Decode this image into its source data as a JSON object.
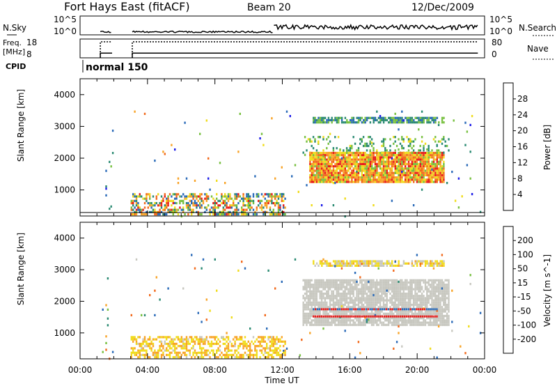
{
  "header": {
    "station": "Fort Hays East (fitACF)",
    "beam": "Beam 20",
    "date": "12/Dec/2009"
  },
  "summary": {
    "nsky_label": "N.Sky",
    "nsky_ticks": [
      "10^5",
      "10^0"
    ],
    "nsearch_label": "N.Search",
    "freq_label": "Freq.",
    "freq_unit": "[MHz]",
    "freq_ticks": [
      "18",
      "8"
    ],
    "nave_ticks": [
      "80",
      "0"
    ],
    "nave_label": "Nave",
    "cpid_label": "CPID",
    "cpid_value": "normal 150"
  },
  "axes": {
    "xlabel": "Time UT",
    "ylabel": "Slant Range [km]",
    "x_ticks": [
      "00:00",
      "04:00",
      "08:00",
      "12:00",
      "16:00",
      "20:00",
      "00:00"
    ],
    "y_ticks": [
      "1000",
      "2000",
      "3000",
      "4000"
    ]
  },
  "colors": {
    "frame": "#000000",
    "background": "#ffffff",
    "ground_scatter": "#c8c8c0"
  },
  "chart_data": [
    {
      "type": "line",
      "title": "N.Sky / N.Search",
      "x_range_hours": [
        0,
        24
      ],
      "ylim": [
        "10^0",
        "10^5"
      ],
      "log_scale": true,
      "gaps_hours": [
        [
          0,
          1.2
        ],
        [
          1.9,
          3.1
        ]
      ],
      "segments": [
        {
          "from": 1.2,
          "to": 1.9,
          "level": "low"
        },
        {
          "from": 3.1,
          "to": 11.5,
          "level": "low"
        },
        {
          "from": 11.5,
          "to": 23.6,
          "level": "elevated"
        }
      ]
    },
    {
      "type": "line",
      "title": "Freq. [MHz] / Nave",
      "x_range_hours": [
        0,
        24
      ],
      "freq_ylim": [
        8,
        18
      ],
      "nave_ylim": [
        0,
        80
      ],
      "segments": [
        {
          "from": 1.2,
          "to": 1.9,
          "freq_mhz": 10.5,
          "nave": 68
        },
        {
          "from": 3.1,
          "to": 23.6,
          "freq_mhz": 10.5,
          "nave": 68
        }
      ],
      "cpid": [
        {
          "from": 1.2,
          "label": "normal 150"
        }
      ]
    },
    {
      "type": "heatmap",
      "title": "Power",
      "colorbar_label": "Power [dB]",
      "colorbar_ticks": [
        4,
        8,
        12,
        16,
        20,
        24,
        28
      ],
      "colorbar_colors": [
        "#1c1ce8",
        "#2a6ab8",
        "#2a8a72",
        "#78c040",
        "#f0dc1c",
        "#f8a428",
        "#f26a1c",
        "#e81c1c"
      ],
      "x_range_hours": [
        0,
        24
      ],
      "ylim_km": [
        180,
        4500
      ],
      "regions": [
        {
          "t0": 1.3,
          "t1": 1.9,
          "r0": 200,
          "r1": 2900,
          "density": 0.05,
          "v": [
            2,
            14
          ]
        },
        {
          "t0": 3.0,
          "t1": 13.0,
          "r0": 200,
          "r1": 3500,
          "density": 0.008,
          "v": [
            2,
            26
          ]
        },
        {
          "t0": 3.0,
          "t1": 12.2,
          "r0": 200,
          "r1": 900,
          "density": 0.55,
          "v": [
            4,
            30
          ]
        },
        {
          "t0": 13.8,
          "t1": 21.6,
          "r0": 3150,
          "r1": 3300,
          "density": 0.75,
          "v": [
            6,
            16
          ]
        },
        {
          "t0": 13.2,
          "t1": 21.9,
          "r0": 2100,
          "r1": 2700,
          "density": 0.2,
          "v": [
            8,
            18
          ]
        },
        {
          "t0": 13.6,
          "t1": 21.6,
          "r0": 1250,
          "r1": 2200,
          "density": 0.92,
          "v": [
            14,
            30
          ]
        },
        {
          "t0": 13.0,
          "t1": 23.8,
          "r0": 200,
          "r1": 3500,
          "density": 0.01,
          "v": [
            2,
            20
          ]
        }
      ]
    },
    {
      "type": "heatmap",
      "title": "Velocity",
      "colorbar_label": "Velocity [m s^-1]",
      "colorbar_ticks": [
        -200,
        -100,
        -50,
        -15,
        15,
        50,
        100,
        200
      ],
      "colorbar_colors": [
        "#e81c1c",
        "#f26a1c",
        "#f8a428",
        "#f0dc1c",
        "#c8c8c0",
        "#78c040",
        "#2a8a72",
        "#2a6ab8",
        "#1c1ce8"
      ],
      "x_range_hours": [
        0,
        24
      ],
      "ylim_km": [
        180,
        4500
      ],
      "regions": [
        {
          "t0": 1.3,
          "t1": 1.9,
          "r0": 200,
          "r1": 2900,
          "density": 0.05,
          "v": [
            -200,
            200
          ]
        },
        {
          "t0": 3.0,
          "t1": 13.0,
          "r0": 200,
          "r1": 3500,
          "density": 0.008,
          "v": [
            -200,
            200
          ]
        },
        {
          "t0": 3.0,
          "t1": 12.2,
          "r0": 200,
          "r1": 900,
          "density": 0.55,
          "v": [
            -80,
            -10
          ]
        },
        {
          "t0": 13.8,
          "t1": 21.6,
          "r0": 3150,
          "r1": 3300,
          "density": 0.75,
          "v": [
            -60,
            10
          ]
        },
        {
          "t0": 13.2,
          "t1": 21.9,
          "r0": 1250,
          "r1": 2700,
          "density": 0.85,
          "v": [
            -10,
            10
          ]
        },
        {
          "t0": 13.0,
          "t1": 23.8,
          "r0": 200,
          "r1": 3500,
          "density": 0.01,
          "v": [
            -200,
            200
          ]
        }
      ],
      "lines": [
        {
          "t0": 13.8,
          "t1": 21.2,
          "r": 1750,
          "v": 200
        },
        {
          "t0": 13.8,
          "t1": 21.2,
          "r": 1520,
          "v": -200
        }
      ]
    }
  ]
}
